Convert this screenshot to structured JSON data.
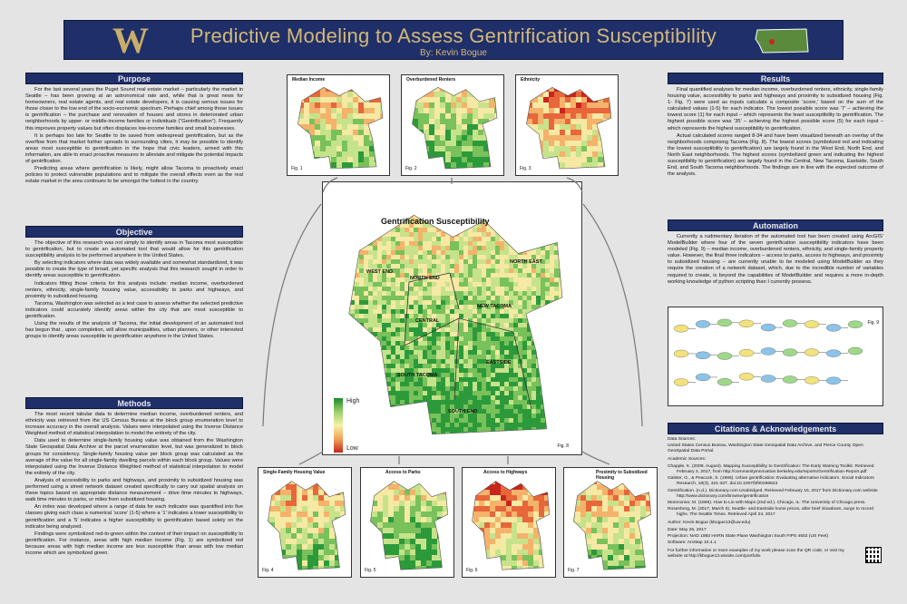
{
  "header": {
    "title": "Predictive Modeling to Assess Gentrification Susceptibility",
    "byline": "By: Kevin Bogue",
    "logo_text": "W"
  },
  "colors": {
    "banner": "#1f2f69",
    "title": "#d4b878",
    "high": "#1f8a2a",
    "low": "#c7261d"
  },
  "purpose": {
    "heading": "Purpose",
    "paragraphs": [
      "For the last several years the Puget Sound real estate market – particularly the market in Seattle – has been growing at an astronomical rate and, while that is great news for homeowners, real estate agents, and real estate developers, it is causing serious issues for those closer to the low end of the socio-economic spectrum. Perhaps chief among those issues is gentrification – the purchase and renovation of houses and stores in deteriorated urban neighborhoods by upper- or middle-income families or individuals (“Gentrification”). Frequently this improves property values but often displaces low-income families and small businesses.",
      "It is perhaps too late for Seattle to be saved from widespread gentrification, but as the overflow from that market further spreads to surrounding cities, it may be possible to identify areas most susceptible to gentrification in the hope that civic leaders, armed with this information, are able to enact proactive measures to alleviate and mitigate the potential impacts of gentrification.",
      "Predicting areas where gentrification is likely, might allow Tacoma to proactively enact policies to protect vulnerable populations and to mitigate the overall effects even as the real estate market in the area continues to be amongst the hottest in the country."
    ]
  },
  "objective": {
    "heading": "Objective",
    "paragraphs": [
      "The objective of this research was not simply to identify areas in Tacoma most susceptible to gentrification, but to create an automated tool that would allow for this gentrification susceptibility analysis to be performed anywhere in the United States.",
      "By selecting indicators where data was widely available and somewhat standardized, it was possible to create the type of broad, yet specific analysis that this research sought in order to identify areas susceptible to gentrification.",
      "Indicators fitting those criteria for this analysis include: median income, overburdened renters, ethnicity, single-family housing value, accessibility to parks and highways, and proximity to subsidized housing.",
      "Tacoma, Washington was selected as a test case to assess whether the selected predictive indicators could accurately identify areas within the city that are most susceptible to gentrification.",
      "Using the results of the analysis of Tacoma, the initial development of an automated tool has begun that , upon completion, will allow municipalities, urban planners, or other interested groups to identify areas susceptible to gentrification anywhere in the United States."
    ]
  },
  "methods": {
    "heading": "Methods",
    "paragraphs": [
      "The most recent tabular data to determine median income, overburdened renters, and ethnicity was retrieved from the US Census Bureau at the block group enumeration level to increase accuracy in the overall analysis. Values were interpolated using the Inverse Distance Weighted method of statistical interpolation to model the entirety of the city.",
      "Data used to determine single-family housing value was obtained from the Washington State Geospatial Data Archive at the parcel enumeration level, but was generalized to block groups for consistency. Single-family housing value per block group was calculated as the average of the value for all single-family dwelling parcels within each block group. Values were interpolated using the Inverse Distance Weighted method of statistical interpolation to model the entirety of the city.",
      "Analysis of accessibility to parks and highways, and proximity to subsidized housing was performed using a street network dataset created specifically to carry out spatial analysis on these topics based on appropriate distance measurement – drive time minutes to highways, walk time minutes to parks, or miles from subsidized housing.",
      "An index was developed where a range of data for each indicator was quantified into five classes giving each class a numerical ‘score’ (1-5) where a ‘1’ indicates a lower susceptibility to gentrification and a ‘5’ indicates a higher susceptibility to gentrification based solely on the indicator being analyzed.",
      "Findings were symbolized red-to-green within the context of their impact on susceptibility to gentrification. For instance, areas with high median income (Fig. 1) are symbolized red because areas with high median income are less susceptible than areas with low median income which are symbolized green."
    ]
  },
  "results": {
    "heading": "Results",
    "paragraphs": [
      "Final quantified analyses for median income, overburdened renters, ethnicity, single-family housing value, accessibility to parks and highways and proximity to subsidized housing (Fig. 1- Fig. 7) were used as inputs calculate a composite ‘score,’ based on the sum of the calculated values (1-5) for each indicator. The lowest possible score was ‘7’ – achieving the lowest score (1) for each input – which represents the least susceptibility to gentrification. The highest possible score was ‘35’ – achieving the highest possible score (5) for each input – which represents the highest susceptibility to gentrification.",
      "Actual calculated scores ranged 8-34 and have been visualized beneath an overlay of the neighborhoods comprising Tacoma (Fig. 8). The lowest scores (symbolized red and indicating the lowest susceptibility to gentrification) are largely found in the West End, North End, and North East neighborhoods. The highest scores (symbolized green and indicating the highest susceptibility to gentrification) are largely found in the Central, New Tacoma, Eastside, South End, and South Tacoma neighborhoods. The findings are in line with the expected outcome of the analysis."
    ]
  },
  "automation": {
    "heading": "Automation",
    "paragraphs": [
      "Currently a rudimentary iteration of the automated tool has been created using ArcGIS’ ModelBuilder where four of the seven gentrification susceptibility indicators have been modeled (Fig. 9) – median income, overburdened renters, ethnicity, and single-family property value. However, the final three indicators – access to parks, access to highways, and proximity to subsidized housing – are currently unable to be modeled using ModelBuilder as they require the creation of a network dataset, which, due to the incredible number of variables required to create, is beyond the capabilities of ModelBuilder and requires a more in-depth working knowledge of python scripting than I currently possess."
    ]
  },
  "citations": {
    "heading": "Citations & Acknowledgements",
    "data_sources_label": "Data Sources:",
    "data_sources": "United States Census Bureau, Washington State Geospatial Data Archive, and Pierce County Open GeoSpatial Data Portal.",
    "academic_label": "Academic Sources:",
    "academic": [
      "Chapple, K. (2009, August). Mapping Susceptibility to Gentrification: The Early Warning Toolkit. Retrieved February 3, 2017, from http://communityinnovation.berkeley.edu/reports/Gentrification-Report.pdf",
      "Galster, G., & Peacock, S. (1986). Urban gentrification: Evaluating alternative indicators. Social Indicators Research, 18(3), 321-337. doi:10.1007/bf00286623",
      "Gentrification. (n.d.). Dictionary.com Unabridged. Retrieved February 15, 2017 from Dictionary.com website http://www.dictionary.com/browse/gentrification",
      "Monmonier, M. (1996). How to Lie with Maps (2nd ed.). Chicago, IL: The University of Chicago press.",
      "Rosenberg, M. (2017, March 6). Seattle- and Eastside home prices, after brief slowdown, surge to record highs. The Seattle Times. Retrieved April 24, 2017"
    ],
    "meta": [
      "Author: Kevin Bogue (kbogue13@uw.edu)",
      "Date: May 26, 2017",
      "Projection: NAD 1983 HARN State Plane Washington South FIPS 4602 (US Feet)",
      "Software: ArcMap 10.4.1"
    ],
    "contact": "For further information or more examples of my work please scan the QR code, or visit my website at http://kbogue13.wixsite.com/portfolio"
  },
  "figures": {
    "fig1": {
      "title": "Median Income",
      "label": "Fig. 1"
    },
    "fig2": {
      "title": "Overburdened Renters",
      "label": "Fig. 2"
    },
    "fig3": {
      "title": "Ethnicity",
      "label": "Fig. 3"
    },
    "fig4": {
      "title": "Single-Family Housing Value",
      "label": "Fig. 4"
    },
    "fig5": {
      "title": "Access to Parks",
      "label": "Fig. 5"
    },
    "fig6": {
      "title": "Access to Highways",
      "label": "Fig. 6"
    },
    "fig7": {
      "title": "Proximity to Subsidized Housing",
      "label": "Fig. 7"
    },
    "fig9": {
      "label": "Fig. 9"
    },
    "fig8": {
      "title": "Gentrification Susceptibility",
      "label": "Fig. 8",
      "legend_high": "High",
      "legend_low": "Low",
      "neighborhoods": [
        "WEST END",
        "NORTH END",
        "NORTH EAST",
        "NEW TACOMA",
        "CENTRAL",
        "SOUTH TACOMA",
        "EASTSIDE",
        "SOUTH END"
      ]
    }
  }
}
